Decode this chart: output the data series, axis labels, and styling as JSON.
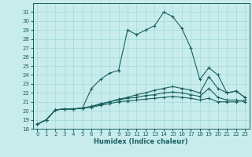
{
  "xlabel": "Humidex (Indice chaleur)",
  "bg_color": "#c8ecec",
  "line_color": "#1a6060",
  "grid_color": "#a0d8d8",
  "xlim": [
    -0.5,
    23.5
  ],
  "ylim": [
    18,
    32
  ],
  "yticks": [
    18,
    19,
    20,
    21,
    22,
    23,
    24,
    25,
    26,
    27,
    28,
    29,
    30,
    31
  ],
  "xticks": [
    0,
    1,
    2,
    3,
    4,
    5,
    6,
    7,
    8,
    9,
    10,
    11,
    12,
    13,
    14,
    15,
    16,
    17,
    18,
    19,
    20,
    21,
    22,
    23
  ],
  "series": [
    [
      18.5,
      19.0,
      20.1,
      20.2,
      20.2,
      20.3,
      22.5,
      23.5,
      24.2,
      24.5,
      29.0,
      28.5,
      29.0,
      29.5,
      31.0,
      30.5,
      29.2,
      27.0,
      23.5,
      24.8,
      24.0,
      22.0,
      22.2,
      21.5
    ],
    [
      18.5,
      19.0,
      20.1,
      20.2,
      20.2,
      20.3,
      20.5,
      20.8,
      21.0,
      21.3,
      21.5,
      21.8,
      22.0,
      22.3,
      22.5,
      22.7,
      22.5,
      22.3,
      22.0,
      23.8,
      22.5,
      22.0,
      22.2,
      21.5
    ],
    [
      18.5,
      19.0,
      20.1,
      20.2,
      20.2,
      20.3,
      20.5,
      20.7,
      21.0,
      21.2,
      21.4,
      21.5,
      21.7,
      21.8,
      22.0,
      22.1,
      22.0,
      21.8,
      21.6,
      22.5,
      21.5,
      21.2,
      21.2,
      21.0
    ],
    [
      18.5,
      19.0,
      20.1,
      20.2,
      20.2,
      20.3,
      20.4,
      20.6,
      20.8,
      21.0,
      21.1,
      21.2,
      21.3,
      21.4,
      21.5,
      21.6,
      21.5,
      21.4,
      21.2,
      21.4,
      21.0,
      21.0,
      21.0,
      21.2
    ]
  ]
}
